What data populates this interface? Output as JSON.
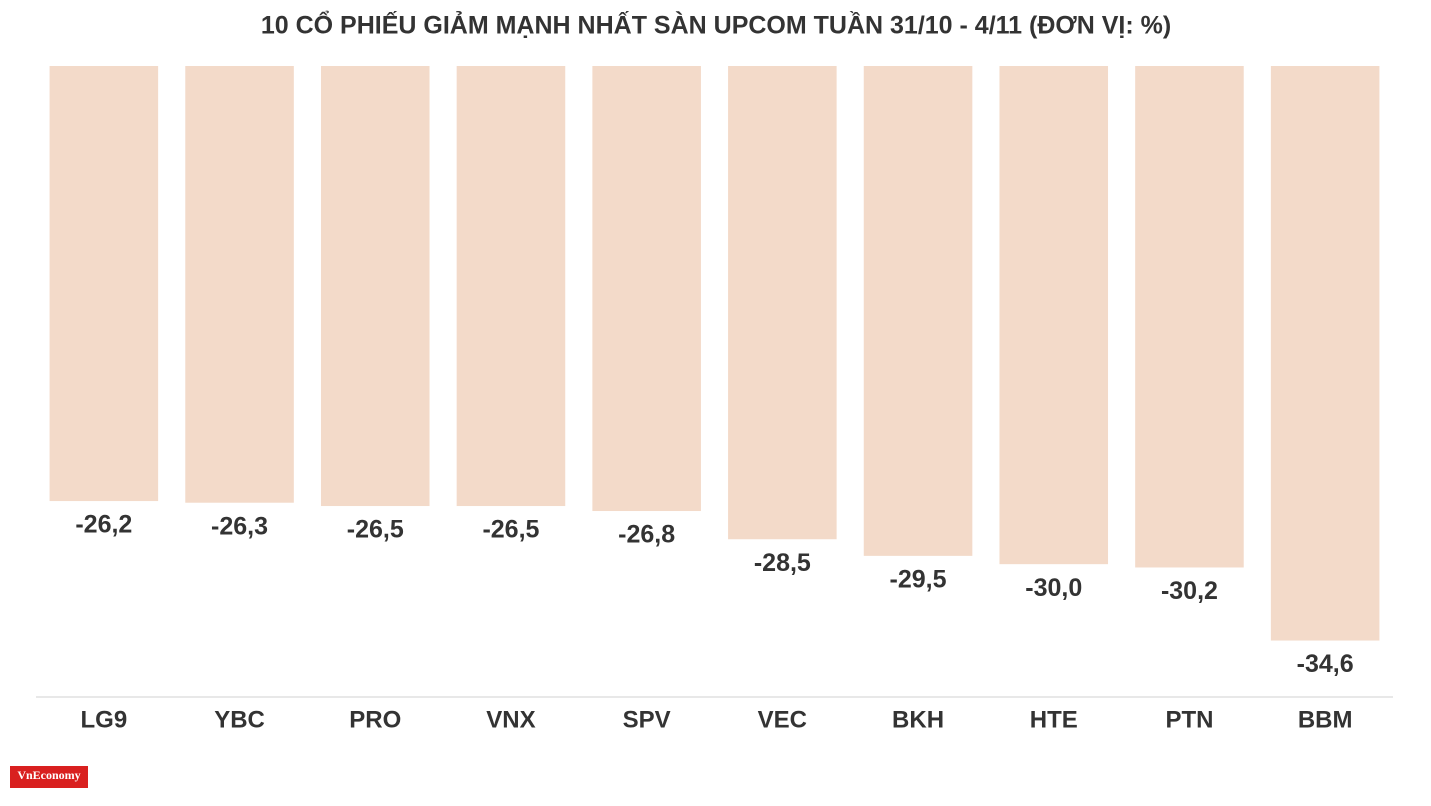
{
  "chart_data": {
    "type": "bar",
    "title": "10 CỔ PHIẾU GIẢM MẠNH NHẤT SÀN UPCOM TUẦN 31/10 - 4/11 (ĐƠN VỊ: %)",
    "categories": [
      "LG9",
      "YBC",
      "PRO",
      "VNX",
      "SPV",
      "VEC",
      "BKH",
      "HTE",
      "PTN",
      "BBM"
    ],
    "values": [
      -26.2,
      -26.3,
      -26.5,
      -26.5,
      -26.8,
      -28.5,
      -29.5,
      -30.0,
      -30.2,
      -34.6
    ],
    "value_labels": [
      "-26,2",
      "-26,3",
      "-26,5",
      "-26,5",
      "-26,8",
      "-28,5",
      "-29,5",
      "-30,0",
      "-30,2",
      "-34,6"
    ],
    "color": "#f3dac9",
    "ylim": [
      -38,
      0
    ],
    "logo": "VnEconomy"
  }
}
